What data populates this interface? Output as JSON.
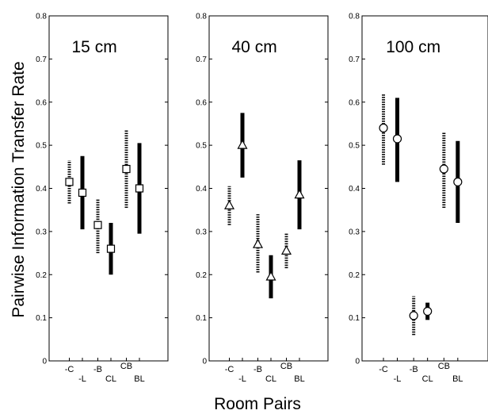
{
  "figure": {
    "ylabel": "Pairwise Information Transfer Rate",
    "xlabel": "Room Pairs"
  },
  "chart_data": [
    {
      "type": "errorbar",
      "title": "15 cm",
      "marker": "square",
      "ylim": [
        0,
        0.8
      ],
      "yticks": [
        "0",
        "0.1",
        "0.2",
        "0.3",
        "0.4",
        "0.5",
        "0.6",
        "0.7",
        "0.8"
      ],
      "categories": [
        {
          "main": "-C",
          "sup": ""
        },
        {
          "main": "-L",
          "sup": ""
        },
        {
          "main": "-B",
          "sup": ""
        },
        {
          "main": "CL",
          "sup": ""
        },
        {
          "main": "",
          "sup": "CB"
        },
        {
          "main": "BL",
          "sup": ""
        }
      ],
      "points": [
        {
          "y": 0.415,
          "low": 0.365,
          "high": 0.465
        },
        {
          "y": 0.39,
          "low": 0.305,
          "high": 0.475
        },
        {
          "y": 0.315,
          "low": 0.25,
          "high": 0.375
        },
        {
          "y": 0.26,
          "low": 0.2,
          "high": 0.32
        },
        {
          "y": 0.445,
          "low": 0.355,
          "high": 0.535
        },
        {
          "y": 0.4,
          "low": 0.295,
          "high": 0.505
        }
      ]
    },
    {
      "type": "errorbar",
      "title": "40 cm",
      "marker": "triangle",
      "ylim": [
        0,
        0.8
      ],
      "yticks": [
        "0",
        "0.1",
        "0.2",
        "0.3",
        "0.4",
        "0.5",
        "0.6",
        "0.7",
        "0.8"
      ],
      "categories": [
        {
          "main": "-C",
          "sup": ""
        },
        {
          "main": "-L",
          "sup": ""
        },
        {
          "main": "-B",
          "sup": ""
        },
        {
          "main": "CL",
          "sup": ""
        },
        {
          "main": "",
          "sup": "CB"
        },
        {
          "main": "BL",
          "sup": ""
        }
      ],
      "points": [
        {
          "y": 0.36,
          "low": 0.315,
          "high": 0.405
        },
        {
          "y": 0.5,
          "low": 0.425,
          "high": 0.575
        },
        {
          "y": 0.27,
          "low": 0.205,
          "high": 0.34
        },
        {
          "y": 0.195,
          "low": 0.145,
          "high": 0.245
        },
        {
          "y": 0.255,
          "low": 0.215,
          "high": 0.295
        },
        {
          "y": 0.385,
          "low": 0.305,
          "high": 0.465
        }
      ]
    },
    {
      "type": "errorbar",
      "title": "100 cm",
      "marker": "circle",
      "ylim": [
        0,
        0.8
      ],
      "yticks": [
        "0",
        "0.1",
        "0.2",
        "0.3",
        "0.4",
        "0.5",
        "0.6",
        "0.7",
        "0.8"
      ],
      "categories": [
        {
          "main": "-C",
          "sup": ""
        },
        {
          "main": "-L",
          "sup": ""
        },
        {
          "main": "-B",
          "sup": ""
        },
        {
          "main": "CL",
          "sup": ""
        },
        {
          "main": "",
          "sup": "CB"
        },
        {
          "main": "BL",
          "sup": ""
        }
      ],
      "points": [
        {
          "y": 0.54,
          "low": 0.455,
          "high": 0.62
        },
        {
          "y": 0.515,
          "low": 0.415,
          "high": 0.61
        },
        {
          "y": 0.105,
          "low": 0.06,
          "high": 0.15
        },
        {
          "y": 0.115,
          "low": 0.095,
          "high": 0.135
        },
        {
          "y": 0.445,
          "low": 0.355,
          "high": 0.53
        },
        {
          "y": 0.415,
          "low": 0.32,
          "high": 0.51
        }
      ]
    }
  ]
}
